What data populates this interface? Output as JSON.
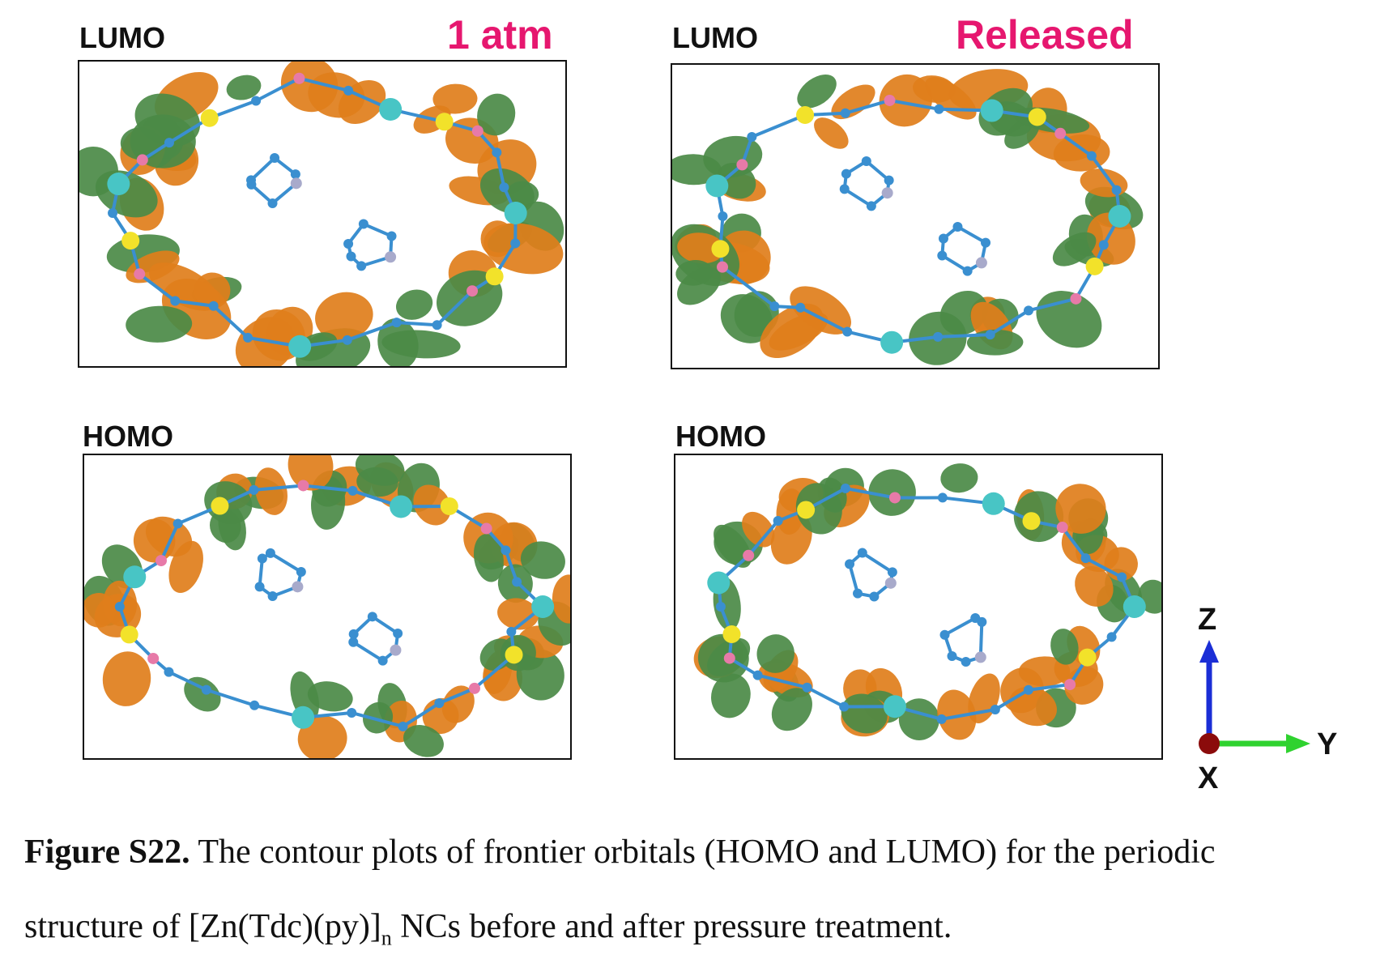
{
  "panels": {
    "top_left": {
      "label": "LUMO",
      "condition": "1 atm"
    },
    "top_right": {
      "label": "LUMO",
      "condition": "Released"
    },
    "bottom_left": {
      "label": "HOMO"
    },
    "bottom_right": {
      "label": "HOMO"
    }
  },
  "axes": {
    "z": "Z",
    "y": "Y",
    "x": "X"
  },
  "caption": {
    "figure_label": "Figure S22.",
    "line1": "The contour plots of frontier orbitals (HOMO and LUMO) for the periodic",
    "line2_prefix": "structure of [Zn(Tdc)(py)]",
    "line2_subscript": "n",
    "line2_suffix": " NCs before and after pressure treatment."
  },
  "colors": {
    "orbital_positive": "#e07e1b",
    "orbital_negative": "#4b8a46",
    "carbon_bond": "#3a8fd0",
    "zinc": "#48c5c5",
    "sulfur": "#f2e22a",
    "oxygen": "#e77aa8",
    "nitrogen": "#a8aacb",
    "axis_z": "#1b2ed6",
    "axis_y": "#2fd22f",
    "axis_x": "#8b0b0b",
    "condition_text": "#e6176f"
  }
}
